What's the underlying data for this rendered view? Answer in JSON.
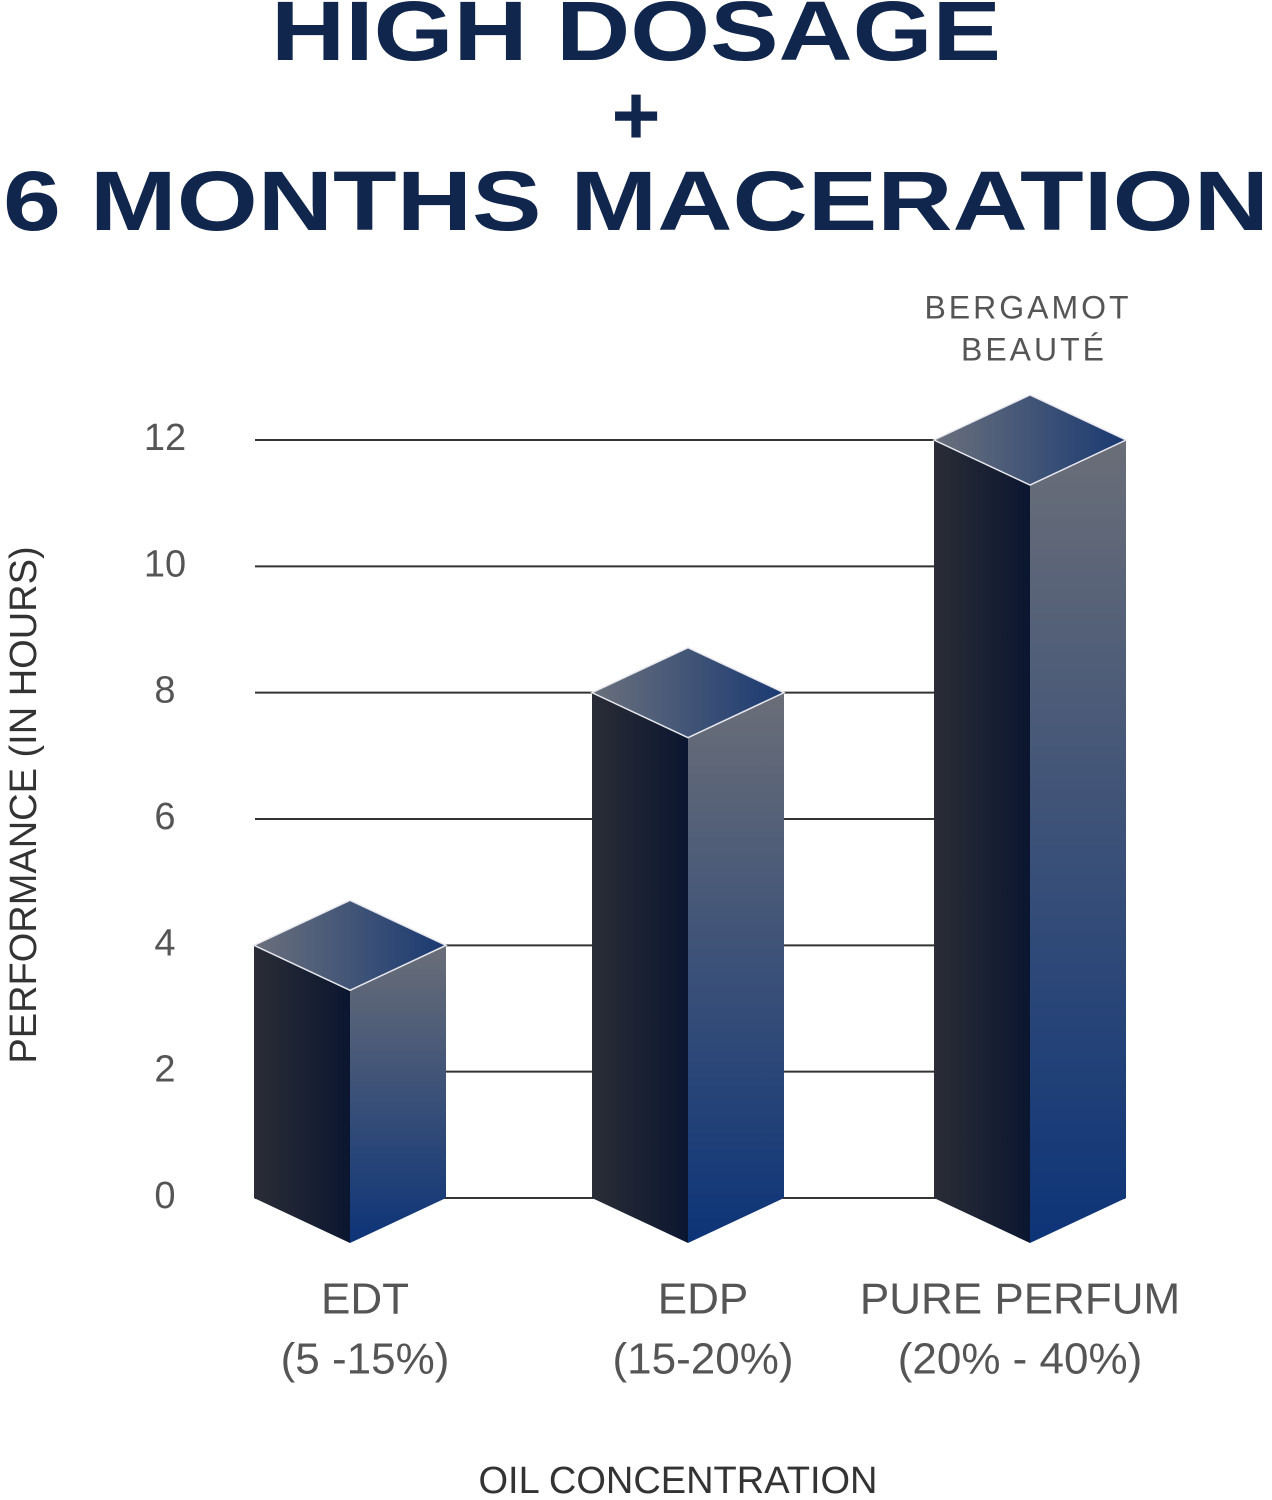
{
  "chart_data": {
    "type": "bar3d",
    "title": [
      "HIGH DOSAGE",
      "+",
      "6 MONTHS MACERATION"
    ],
    "annotation": [
      "BERGAMOT",
      "BEAUTÉ"
    ],
    "y_label": "PERFORMANCE (IN HOURS)",
    "x_label": "OIL CONCENTRATION",
    "categories": [
      [
        "EDT",
        "(5 -15%)"
      ],
      [
        "EDP",
        "(15-20%)"
      ],
      [
        "PURE PERFUM",
        "(20% - 40%)"
      ]
    ],
    "values": [
      4,
      8,
      12
    ],
    "color": "#0d2f6e",
    "ylim": [
      0,
      12
    ],
    "yticks": [
      0,
      2,
      4,
      6,
      8,
      10,
      12
    ],
    "grid": true
  }
}
